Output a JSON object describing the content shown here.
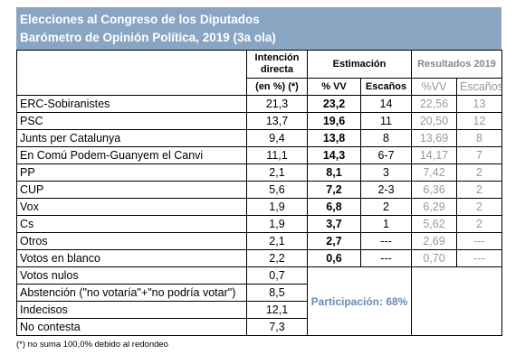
{
  "header": {
    "title": "Elecciones al Congreso de los Diputados",
    "subtitle": "Barómetro de Opinión Política, 2019 (3a ola)"
  },
  "columns": {
    "intencion": "Intención directa",
    "intencion_sub": "(en %) (*)",
    "estimacion": "Estimación",
    "vv": "% VV",
    "escanos": "Escaños",
    "resultados": "Resultados 2019",
    "res_vv": "%VV",
    "res_escanos": "Escaños"
  },
  "rows": [
    {
      "party": "ERC-Sobiranistes",
      "int": "21,3",
      "vv": "23,2",
      "esc": "14",
      "rvv": "22,56",
      "resc": "13"
    },
    {
      "party": "PSC",
      "int": "13,7",
      "vv": "19,6",
      "esc": "11",
      "rvv": "20,50",
      "resc": "12"
    },
    {
      "party": "Junts per Catalunya",
      "int": "9,4",
      "vv": "13,8",
      "esc": "8",
      "rvv": "13,69",
      "resc": "8"
    },
    {
      "party": "En Comú Podem-Guanyem el Canvi",
      "int": "11,1",
      "vv": "14,3",
      "esc": "6-7",
      "rvv": "14,17",
      "resc": "7"
    },
    {
      "party": "PP",
      "int": "2,1",
      "vv": "8,1",
      "esc": "3",
      "rvv": "7,42",
      "resc": "2"
    },
    {
      "party": "CUP",
      "int": "5,6",
      "vv": "7,2",
      "esc": "2-3",
      "rvv": "6,36",
      "resc": "2"
    },
    {
      "party": "Vox",
      "int": "1,9",
      "vv": "6,8",
      "esc": "2",
      "rvv": "6,29",
      "resc": "2"
    },
    {
      "party": "Cs",
      "int": "1,9",
      "vv": "3,7",
      "esc": "1",
      "rvv": "5,62",
      "resc": "2"
    },
    {
      "party": "Otros",
      "int": "2,1",
      "vv": "2,7",
      "esc": "---",
      "rvv": "2,69",
      "resc": "---"
    },
    {
      "party": "Votos en blanco",
      "int": "2,2",
      "vv": "0,6",
      "esc": "---",
      "rvv": "0,70",
      "resc": "---"
    }
  ],
  "extra_rows": [
    {
      "label": "Votos nulos",
      "int": "0,7"
    },
    {
      "label": "Abstención (\"no votaría\"+\"no podría votar\")",
      "int": "8,5"
    },
    {
      "label": "Indecisos",
      "int": "12,1"
    },
    {
      "label": "No contesta",
      "int": "7,3"
    }
  ],
  "participacion": "Participación: 68%",
  "footnote": "(*) no suma 100,0% debido al redondeo"
}
